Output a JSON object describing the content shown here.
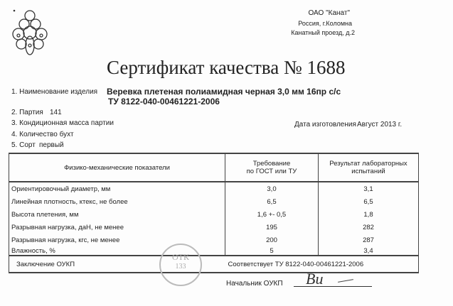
{
  "header": {
    "company": "ОАО \"Канат\"",
    "city": "Россия,  г.Коломна",
    "street": "Канатный проезд,  д.2"
  },
  "title": "Сертификат качества  № 1688",
  "fields": {
    "item1_label": "1. Наименование изделия",
    "item1_value": "Веревка плетеная полиамидная черная 3,0 мм 16пр с/с",
    "item1_spec": "ТУ 8122-040-00461221-2006",
    "item2_label": "2. Партия",
    "item2_value": "141",
    "item3_label": "3. Кондиционная масса партии",
    "item4_label": "4. Количество бухт",
    "item5_label": "5. Сорт",
    "item5_value": "первый",
    "date_label": "Дата изготовления",
    "date_value": "Август 2013 г."
  },
  "table": {
    "headers": [
      "Физико-механические показатели",
      "Требование\nпо ГОСТ или ТУ",
      "Результат лабораторных\nиспытаний"
    ],
    "rows": [
      {
        "name": "Ориентировочный диаметр,  мм",
        "req": "3,0",
        "result": "3,1"
      },
      {
        "name": "Линейная плотность,  ктекс, не более",
        "req": "6,5",
        "result": "6,5"
      },
      {
        "name": "Высота плетения,  мм",
        "req": "1,6  +- 0,5",
        "result": "1,8"
      },
      {
        "name": "Разрывная нагрузка,  даН, не менее",
        "req": "195",
        "result": "282"
      },
      {
        "name": "Разрывная нагрузка,  кгс, не менее",
        "req": "200",
        "result": "287"
      },
      {
        "name": "Влажность, %",
        "req": "5",
        "result": "3,4"
      }
    ],
    "conclusion_label": "Заключение ОУКП",
    "conclusion_value": "Соответствует  ТУ 8122-040-00461221-2006"
  },
  "stamp": {
    "line1": "ОТК",
    "line2": "133"
  },
  "signature": {
    "label": "Начальник ОУКП",
    "mark": "Вu"
  }
}
